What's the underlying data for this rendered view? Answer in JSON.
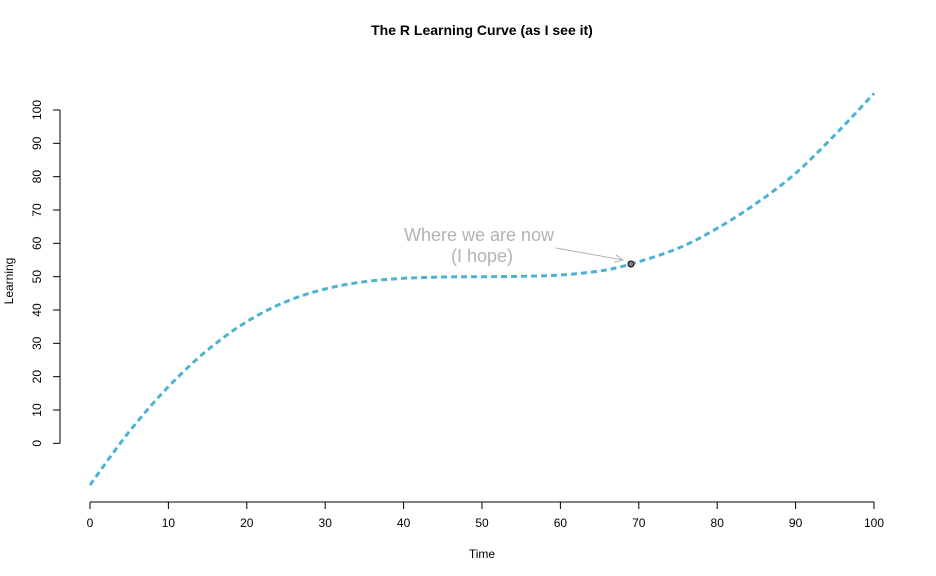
{
  "chart_data": {
    "type": "line",
    "title": "The R Learning Curve (as I see it)",
    "xlabel": "Time",
    "ylabel": "Learning",
    "xlim": [
      0,
      100
    ],
    "ylim": [
      -14,
      112
    ],
    "x_ticks": [
      0,
      10,
      20,
      30,
      40,
      50,
      60,
      70,
      80,
      90,
      100
    ],
    "y_ticks": [
      0,
      10,
      20,
      30,
      40,
      50,
      60,
      70,
      80,
      90,
      100
    ],
    "grid": false,
    "line_style": "dashed",
    "line_color": "#4eb3d3",
    "series": [
      {
        "x": [
          0,
          5,
          10,
          15,
          20,
          25,
          30,
          35,
          40,
          45,
          50,
          55,
          60,
          65,
          69,
          75,
          80,
          85,
          90,
          95,
          100
        ],
        "values": [
          -12.5,
          3.5,
          17,
          28,
          36.5,
          42.5,
          46.3,
          48.5,
          49.5,
          49.9,
          50,
          50.1,
          50.5,
          51.7,
          53.8,
          58.5,
          64.5,
          72,
          81,
          92.5,
          105
        ]
      }
    ],
    "highlight_point": {
      "x": 69,
      "y": 53.8
    },
    "annotation": {
      "line1": "Where we are now",
      "line2": "(I hope)"
    }
  }
}
